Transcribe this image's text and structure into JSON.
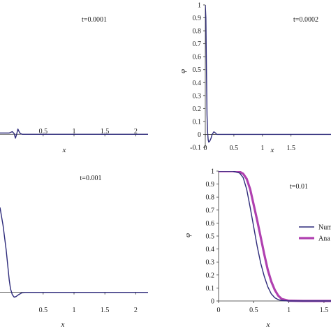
{
  "chart_data": [
    {
      "type": "line",
      "annotation": "t=0.0001",
      "xlabel": "x",
      "ylabel": "",
      "xlim": [
        -0.2,
        2.2
      ],
      "ylim": [
        -0.1,
        1.0
      ],
      "xticks": [
        "0.5",
        "1",
        "1.5",
        "2"
      ],
      "yticks": [],
      "series": [
        {
          "color": "#2d2a7a",
          "x": [
            -0.2,
            -0.05,
            0.0,
            0.03,
            0.05,
            0.07,
            0.09,
            0.11,
            0.13,
            0.16,
            0.2,
            0.3,
            0.5,
            1.0,
            1.5,
            2.2
          ],
          "values": [
            0.01,
            0.01,
            0.02,
            0.005,
            -0.03,
            0.0,
            0.04,
            0.02,
            0.005,
            0.0,
            0.0,
            0.0,
            0.0,
            0.0,
            0.0,
            0.0
          ]
        }
      ]
    },
    {
      "type": "line",
      "annotation": "t=0.0002",
      "xlabel": "x",
      "ylabel": "φ",
      "xlim": [
        0,
        2.2
      ],
      "ylim": [
        -0.1,
        1.0
      ],
      "xticks": [
        "0",
        "0.5",
        "1",
        "1.5"
      ],
      "yticks": [
        "1",
        "0.9",
        "0.8",
        "0.7",
        "0.6",
        "0.5",
        "0.4",
        "0.3",
        "0.2",
        "0.1",
        "0",
        "-0.1"
      ],
      "series": [
        {
          "color": "#2d2a7a",
          "x": [
            0.0,
            0.01,
            0.02,
            0.03,
            0.04,
            0.05,
            0.06,
            0.08,
            0.1,
            0.12,
            0.15,
            0.18,
            0.2,
            0.25,
            0.3,
            1.0,
            2.2
          ],
          "values": [
            1.0,
            0.9,
            0.5,
            0.15,
            0.02,
            -0.04,
            -0.06,
            -0.05,
            -0.03,
            0.0,
            0.02,
            0.01,
            0.0,
            0.0,
            0.0,
            0.0,
            0.0
          ]
        }
      ]
    },
    {
      "type": "line",
      "annotation": "t=0.001",
      "xlabel": "x",
      "ylabel": "",
      "xlim": [
        -0.2,
        2.2
      ],
      "ylim": [
        -0.1,
        1.0
      ],
      "xticks": [
        "0.5",
        "1",
        "1.5",
        "2"
      ],
      "yticks": [],
      "series": [
        {
          "color": "#2d2a7a",
          "x": [
            -0.2,
            -0.15,
            -0.1,
            -0.07,
            -0.05,
            -0.03,
            0.0,
            0.03,
            0.06,
            0.1,
            0.15,
            0.2,
            0.25,
            0.3,
            0.5,
            1.0,
            1.5,
            2.2
          ],
          "values": [
            0.7,
            0.55,
            0.35,
            0.2,
            0.1,
            0.03,
            -0.02,
            -0.04,
            -0.035,
            -0.02,
            -0.005,
            0.0,
            0.0,
            0.0,
            0.0,
            0.0,
            0.0,
            0.0
          ]
        }
      ]
    },
    {
      "type": "line",
      "annotation": "t=0.01",
      "xlabel": "x",
      "ylabel": "φ",
      "xlim": [
        0,
        1.6
      ],
      "ylim": [
        0,
        1.0
      ],
      "xticks": [
        "0",
        "0.5",
        "1",
        "1.5"
      ],
      "yticks": [
        "1",
        "0.9",
        "0.8",
        "0.7",
        "0.6",
        "0.5",
        "0.4",
        "0.3",
        "0.2",
        "0.1",
        "0"
      ],
      "legend_position": "right",
      "series": [
        {
          "name": "Num",
          "color": "#2d2a7a",
          "x": [
            0.0,
            0.2,
            0.3,
            0.35,
            0.4,
            0.45,
            0.5,
            0.55,
            0.6,
            0.65,
            0.7,
            0.75,
            0.8,
            0.85,
            0.9,
            1.0,
            1.2,
            1.6
          ],
          "values": [
            1.0,
            1.0,
            0.985,
            0.95,
            0.86,
            0.72,
            0.57,
            0.42,
            0.29,
            0.19,
            0.11,
            0.055,
            0.025,
            0.01,
            0.004,
            0.0,
            0.0,
            0.0
          ]
        },
        {
          "name": "Ana",
          "color": "#b040b0",
          "x": [
            0.0,
            0.2,
            0.3,
            0.35,
            0.4,
            0.45,
            0.5,
            0.55,
            0.6,
            0.65,
            0.7,
            0.75,
            0.8,
            0.85,
            0.9,
            1.0,
            1.2,
            1.6
          ],
          "values": [
            1.0,
            1.0,
            0.995,
            0.98,
            0.94,
            0.86,
            0.74,
            0.62,
            0.49,
            0.36,
            0.24,
            0.15,
            0.085,
            0.04,
            0.015,
            0.002,
            0.0,
            0.0
          ]
        }
      ]
    }
  ]
}
